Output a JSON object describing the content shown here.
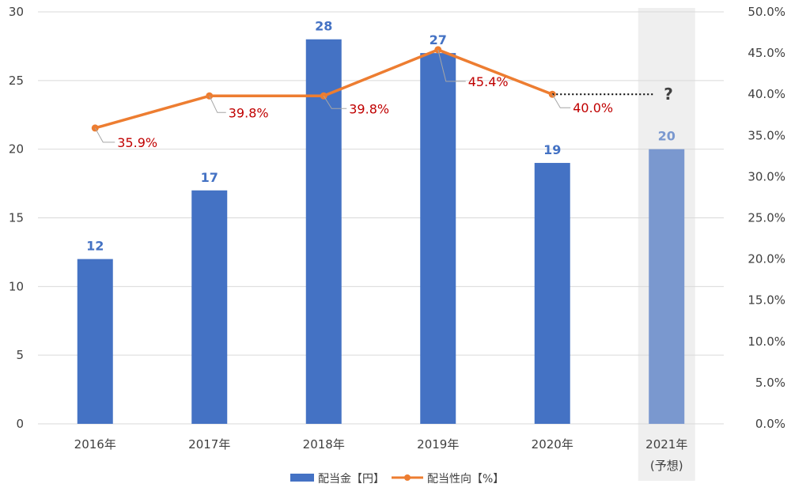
{
  "chart_data": {
    "type": "bar",
    "categories": [
      "2016年",
      "2017年",
      "2018年",
      "2019年",
      "2020年",
      "2021年"
    ],
    "category_sublabels": [
      "",
      "",
      "",
      "",
      "",
      "(予想)"
    ],
    "series": [
      {
        "name": "配当金【円】",
        "type": "bar",
        "axis": "left",
        "values": [
          12,
          17,
          28,
          27,
          19,
          20
        ],
        "forecast_index": 5
      },
      {
        "name": "配当性向【%】",
        "type": "line",
        "axis": "right",
        "values": [
          35.9,
          39.8,
          39.8,
          45.4,
          40.0,
          null
        ]
      }
    ],
    "bar_labels": [
      "12",
      "17",
      "28",
      "27",
      "19",
      "20"
    ],
    "line_labels": [
      "35.9%",
      "39.8%",
      "39.8%",
      "45.4%",
      "40.0%"
    ],
    "forecast_marker": "?",
    "left_axis": {
      "ylim": [
        0,
        30
      ],
      "ticks": [
        0,
        5,
        10,
        15,
        20,
        25,
        30
      ],
      "tick_labels": [
        "0",
        "5",
        "10",
        "15",
        "20",
        "25",
        "30"
      ]
    },
    "right_axis": {
      "ylim": [
        0,
        50
      ],
      "ticks": [
        0,
        5,
        10,
        15,
        20,
        25,
        30,
        35,
        40,
        45,
        50
      ],
      "tick_labels": [
        "0.0%",
        "5.0%",
        "10.0%",
        "15.0%",
        "20.0%",
        "25.0%",
        "30.0%",
        "35.0%",
        "40.0%",
        "45.0%",
        "50.0%"
      ]
    },
    "grid": true,
    "legend_position": "bottom",
    "colors": {
      "bar": "#4472c4",
      "bar_forecast": "#7a98cf",
      "line": "#ed7d31",
      "line_label": "#c00000",
      "forecast_band": "#efefef",
      "grid": "#d9d9d9",
      "forecast_label": "#808080"
    }
  }
}
